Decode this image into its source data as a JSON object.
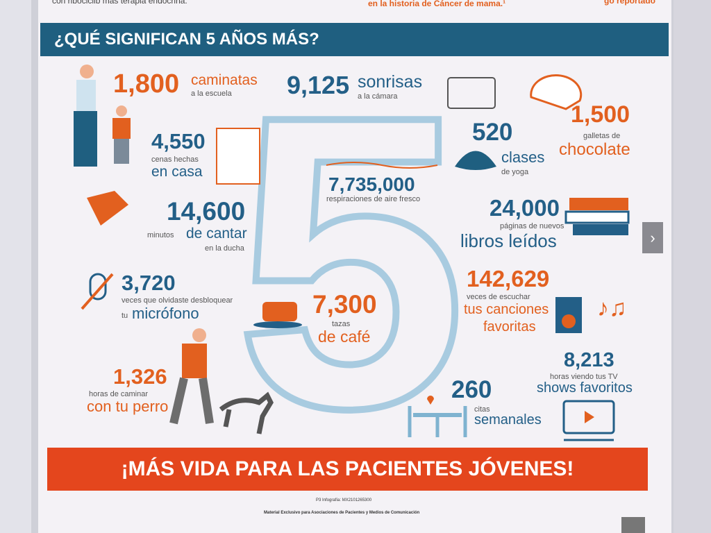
{
  "top_text": {
    "left": "con ribociclib más terapia endocrina.",
    "center": "en la historia de Cáncer de mama.¹",
    "right": "go reportado"
  },
  "heading": "¿QUÉ SIGNIFICAN 5 AÑOS MÁS?",
  "big_number": "5",
  "facts": [
    {
      "number": "1,800",
      "lines": [
        "caminatas",
        "a la escuela"
      ]
    },
    {
      "number": "9,125",
      "lines": [
        "sonrisas",
        "a la cámara"
      ]
    },
    {
      "number": "1,500",
      "lines": [
        "galletas de",
        "chocolate"
      ]
    },
    {
      "number": "4,550",
      "lines": [
        "cenas hechas",
        "en casa"
      ]
    },
    {
      "number": "520",
      "lines": [
        "clases",
        "de yoga"
      ]
    },
    {
      "number": "7,735,000",
      "lines": [
        "respiraciones de aire fresco"
      ]
    },
    {
      "number": "14,600",
      "lines": [
        "minutos",
        "de cantar",
        "en la ducha"
      ]
    },
    {
      "number": "24,000",
      "lines": [
        "páginas de nuevos",
        "libros leídos"
      ]
    },
    {
      "number": "3,720",
      "lines": [
        "veces que olvidaste desbloquear",
        "tu",
        "micrófono"
      ]
    },
    {
      "number": "7,300",
      "lines": [
        "tazas",
        "de café"
      ]
    },
    {
      "number": "142,629",
      "lines": [
        "veces de escuchar",
        "tus canciones",
        "favoritas"
      ]
    },
    {
      "number": "1,326",
      "lines": [
        "horas de caminar",
        "con tu perro"
      ]
    },
    {
      "number": "8,213",
      "lines": [
        "horas viendo tus TV",
        "shows favoritos"
      ]
    },
    {
      "number": "260",
      "lines": [
        "citas",
        "semanales"
      ]
    }
  ],
  "banner": "¡MÁS VIDA PARA LAS PACIENTES JÓVENES!",
  "footer": [
    "P3 Infografía: MX2101265300",
    "Material Exclusivo para Asociaciones de Pacientes y Medios de Comunicación"
  ]
}
